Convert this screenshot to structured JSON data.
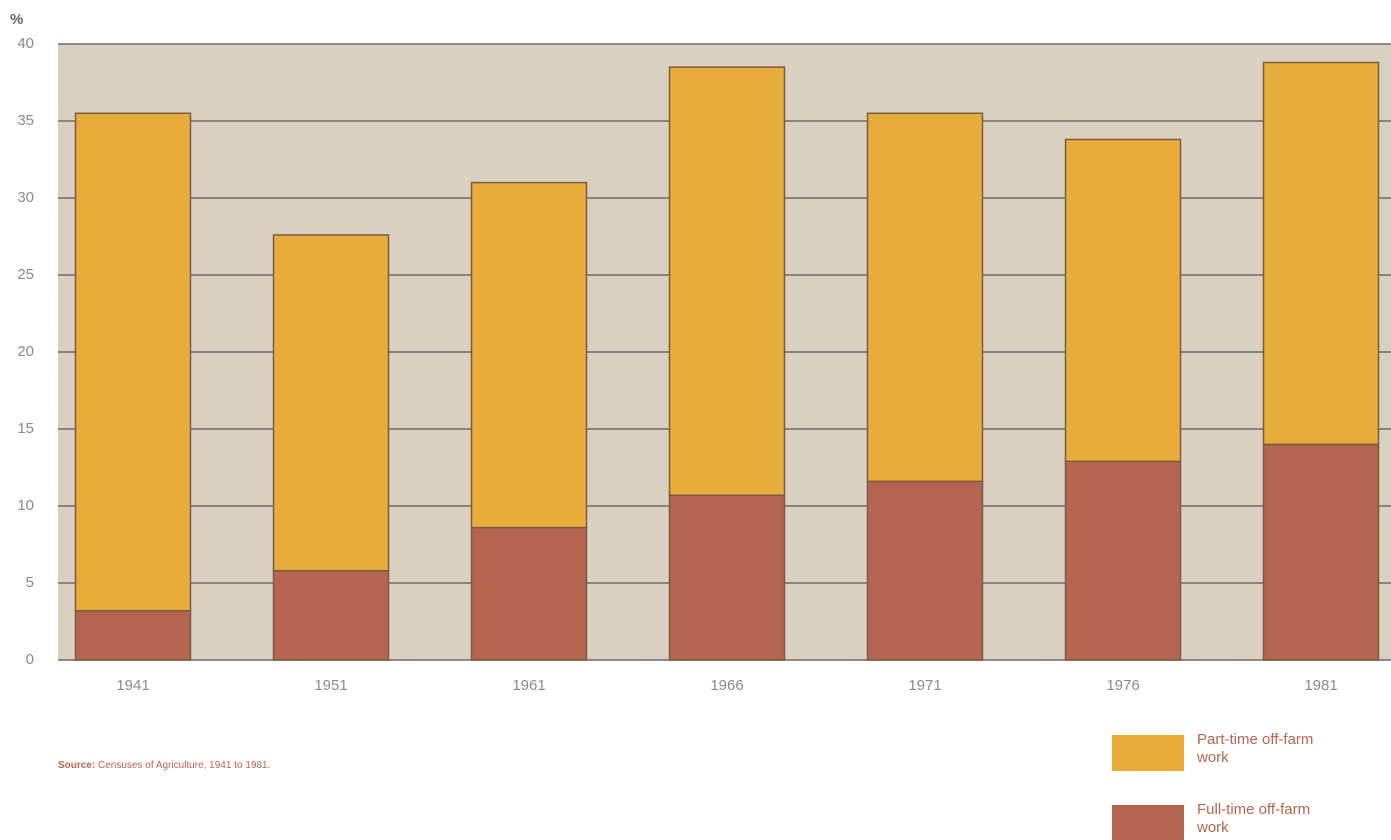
{
  "chart_data": {
    "type": "stacked-bar",
    "y_label": "%",
    "categories": [
      "1941",
      "1951",
      "1961",
      "1966",
      "1971",
      "1976",
      "1981"
    ],
    "series": [
      {
        "name": "Part-time off-farm work",
        "color": "#e8ac3a",
        "values": [
          32.3,
          21.8,
          22.4,
          27.8,
          23.9,
          20.9,
          24.8
        ]
      },
      {
        "name": "Full-time off-farm work",
        "color": "#b5644f",
        "values": [
          3.2,
          5.8,
          8.6,
          10.7,
          11.6,
          12.9,
          14.0
        ]
      }
    ],
    "stack_order": "last-series-at-bottom",
    "ylim": [
      0,
      40
    ],
    "yticks": [
      0,
      5,
      10,
      15,
      20,
      25,
      30,
      35,
      40
    ],
    "grid": true,
    "source_label": "Source:",
    "source_text": "Censuses of Agriculture, 1941 to 1981."
  }
}
